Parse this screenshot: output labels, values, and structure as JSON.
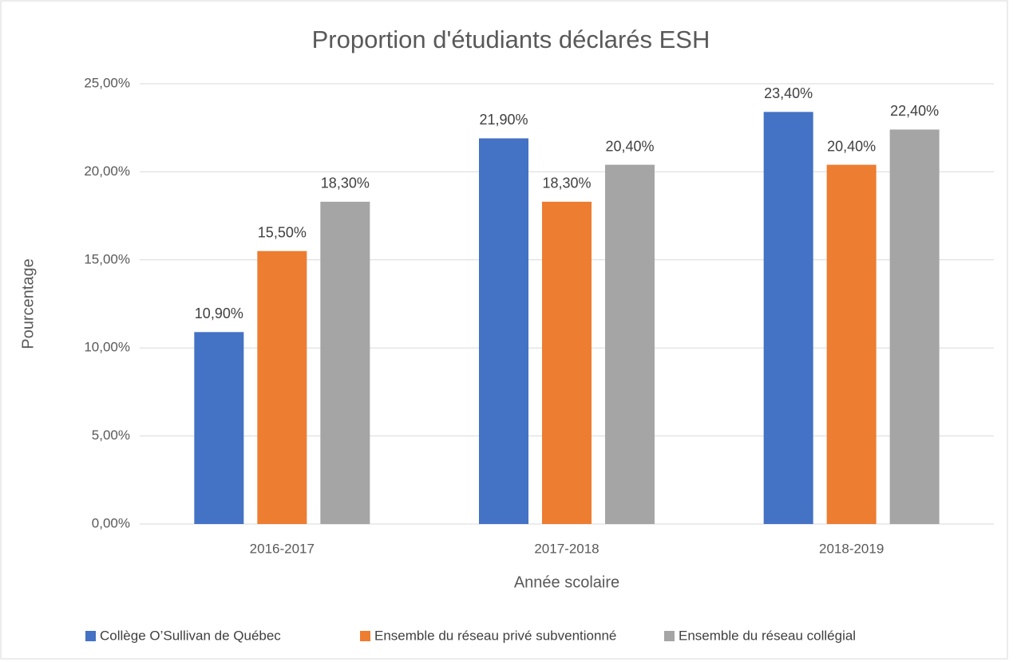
{
  "chart_data": {
    "type": "bar",
    "title": "Proportion d'étudiants déclarés ESH",
    "x_label": "Année scolaire",
    "y_label": "Pourcentage",
    "categories": [
      "2016-2017",
      "2017-2018",
      "2018-2019"
    ],
    "series": [
      {
        "name": "Collège O’Sullivan de Québec",
        "color": "#4472c4",
        "values": [
          10.9,
          21.9,
          23.4
        ],
        "value_labels": [
          "10,90%",
          "21,90%",
          "23,40%"
        ]
      },
      {
        "name": "Ensemble du réseau privé subventionné",
        "color": "#ed7d31",
        "values": [
          15.5,
          18.3,
          20.4
        ],
        "value_labels": [
          "15,50%",
          "18,30%",
          "20,40%"
        ]
      },
      {
        "name": "Ensemble du réseau collégial",
        "color": "#a5a5a5",
        "values": [
          18.3,
          20.4,
          22.4
        ],
        "value_labels": [
          "18,30%",
          "20,40%",
          "22,40%"
        ]
      }
    ],
    "ylim": [
      0,
      25
    ],
    "yticks": [
      {
        "value": 0,
        "label": "0,00%"
      },
      {
        "value": 5,
        "label": "5,00%"
      },
      {
        "value": 10,
        "label": "10,00%"
      },
      {
        "value": 15,
        "label": "15,00%"
      },
      {
        "value": 20,
        "label": "20,00%"
      },
      {
        "value": 25,
        "label": "25,00%"
      }
    ],
    "grid": true,
    "legend": "bottom"
  }
}
